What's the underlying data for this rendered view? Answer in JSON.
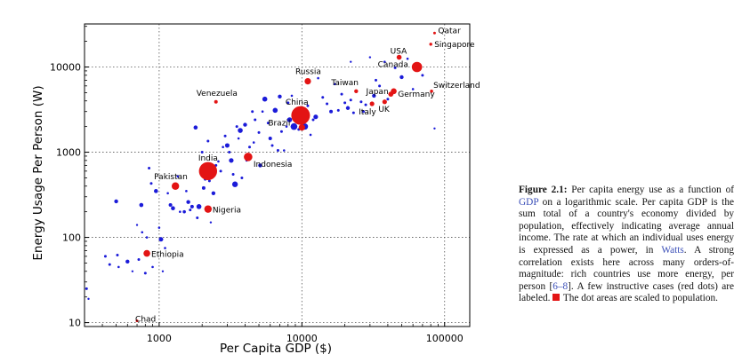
{
  "chart_data": {
    "type": "scatter",
    "xlabel": "Per Capita GDP ($)",
    "ylabel": "Energy Usage Per Person (W)",
    "x_scale": "log",
    "y_scale": "log",
    "xlim": [
      300,
      150000
    ],
    "ylim": [
      9,
      32000
    ],
    "x_ticks": [
      1000,
      10000,
      100000
    ],
    "x_tick_labels": [
      "1000",
      "10000",
      "100000"
    ],
    "y_ticks": [
      10,
      100,
      1000,
      10000
    ],
    "y_tick_labels": [
      "10",
      "100",
      "1000",
      "10000"
    ],
    "grid": "dotted",
    "series": [
      {
        "name": "Labeled countries",
        "color": "#e31414",
        "points": [
          {
            "label": "Qatar",
            "x": 85000,
            "y": 25000,
            "r": 1.5
          },
          {
            "label": "Singapore",
            "x": 80000,
            "y": 18500,
            "r": 1.7
          },
          {
            "label": "USA",
            "x": 48000,
            "y": 13000,
            "r": 2.8
          },
          {
            "label": "Canada",
            "x": 64000,
            "y": 10000,
            "r": 5.8
          },
          {
            "label": "Russia",
            "x": 11000,
            "y": 6800,
            "r": 3.6
          },
          {
            "label": "Switzerland",
            "x": 81000,
            "y": 5200,
            "r": 1.8
          },
          {
            "label": "Taiwan",
            "x": 24000,
            "y": 5200,
            "r": 2.2
          },
          {
            "label": "Japan",
            "x": 44000,
            "y": 5200,
            "r": 3.3
          },
          {
            "label": "Venezuela",
            "x": 2500,
            "y": 3900,
            "r": 2.0
          },
          {
            "label": "Germany",
            "x": 42000,
            "y": 4800,
            "r": 2.9
          },
          {
            "label": "UK",
            "x": 38000,
            "y": 3900,
            "r": 2.6
          },
          {
            "label": "Italy",
            "x": 31000,
            "y": 3700,
            "r": 2.6
          },
          {
            "label": "China",
            "x": 9800,
            "y": 2700,
            "r": 10.5
          },
          {
            "label": "Brazil",
            "x": 10000,
            "y": 1950,
            "r": 3.6
          },
          {
            "label": "Indonesia",
            "x": 4200,
            "y": 880,
            "r": 4.8
          },
          {
            "label": "India",
            "x": 2200,
            "y": 600,
            "r": 10.2
          },
          {
            "label": "Pakistan",
            "x": 1300,
            "y": 400,
            "r": 4.2
          },
          {
            "label": "Nigeria",
            "x": 2200,
            "y": 215,
            "r": 4.2
          },
          {
            "label": "Ethiopia",
            "x": 820,
            "y": 65,
            "r": 3.8
          },
          {
            "label": "Chad",
            "x": 700,
            "y": 10.5,
            "r": 1.5
          }
        ]
      },
      {
        "name": "Other countries",
        "color": "#1b1bd9",
        "points": [
          {
            "x": 310,
            "y": 25,
            "r": 1.5
          },
          {
            "x": 320,
            "y": 19,
            "r": 1.2
          },
          {
            "x": 420,
            "y": 60,
            "r": 1.5
          },
          {
            "x": 450,
            "y": 48,
            "r": 1.5
          },
          {
            "x": 500,
            "y": 265,
            "r": 2.2
          },
          {
            "x": 510,
            "y": 62,
            "r": 1.5
          },
          {
            "x": 520,
            "y": 45,
            "r": 1.3
          },
          {
            "x": 600,
            "y": 52,
            "r": 2.2
          },
          {
            "x": 650,
            "y": 40,
            "r": 1.2
          },
          {
            "x": 700,
            "y": 140,
            "r": 1.2
          },
          {
            "x": 720,
            "y": 55,
            "r": 1.5
          },
          {
            "x": 750,
            "y": 240,
            "r": 2.3
          },
          {
            "x": 760,
            "y": 115,
            "r": 1.3
          },
          {
            "x": 800,
            "y": 38,
            "r": 1.5
          },
          {
            "x": 820,
            "y": 100,
            "r": 1.3
          },
          {
            "x": 850,
            "y": 650,
            "r": 1.5
          },
          {
            "x": 880,
            "y": 430,
            "r": 1.5
          },
          {
            "x": 900,
            "y": 45,
            "r": 1.3
          },
          {
            "x": 950,
            "y": 350,
            "r": 2.3
          },
          {
            "x": 1000,
            "y": 130,
            "r": 1.3
          },
          {
            "x": 1030,
            "y": 95,
            "r": 2.5
          },
          {
            "x": 1060,
            "y": 40,
            "r": 1.2
          },
          {
            "x": 1100,
            "y": 75,
            "r": 1.3
          },
          {
            "x": 1150,
            "y": 330,
            "r": 1.3
          },
          {
            "x": 1200,
            "y": 240,
            "r": 2.0
          },
          {
            "x": 1250,
            "y": 220,
            "r": 2.3
          },
          {
            "x": 1350,
            "y": 520,
            "r": 1.3
          },
          {
            "x": 1400,
            "y": 200,
            "r": 1.3
          },
          {
            "x": 1500,
            "y": 200,
            "r": 1.8
          },
          {
            "x": 1550,
            "y": 350,
            "r": 1.3
          },
          {
            "x": 1600,
            "y": 260,
            "r": 2.2
          },
          {
            "x": 1650,
            "y": 210,
            "r": 1.5
          },
          {
            "x": 1700,
            "y": 230,
            "r": 2.0
          },
          {
            "x": 1800,
            "y": 1950,
            "r": 2.3
          },
          {
            "x": 1850,
            "y": 170,
            "r": 1.5
          },
          {
            "x": 1900,
            "y": 230,
            "r": 2.8
          },
          {
            "x": 2000,
            "y": 1000,
            "r": 1.5
          },
          {
            "x": 2050,
            "y": 380,
            "r": 2.0
          },
          {
            "x": 2100,
            "y": 480,
            "r": 1.5
          },
          {
            "x": 2200,
            "y": 1350,
            "r": 1.5
          },
          {
            "x": 2250,
            "y": 460,
            "r": 1.5
          },
          {
            "x": 2300,
            "y": 150,
            "r": 1.2
          },
          {
            "x": 2400,
            "y": 330,
            "r": 2.2
          },
          {
            "x": 2500,
            "y": 700,
            "r": 1.5
          },
          {
            "x": 2600,
            "y": 780,
            "r": 1.3
          },
          {
            "x": 2700,
            "y": 600,
            "r": 1.5
          },
          {
            "x": 2800,
            "y": 1150,
            "r": 1.3
          },
          {
            "x": 2900,
            "y": 1550,
            "r": 1.5
          },
          {
            "x": 3000,
            "y": 1200,
            "r": 2.5
          },
          {
            "x": 3100,
            "y": 1000,
            "r": 1.5
          },
          {
            "x": 3200,
            "y": 800,
            "r": 2.6
          },
          {
            "x": 3300,
            "y": 550,
            "r": 1.5
          },
          {
            "x": 3400,
            "y": 420,
            "r": 3.2
          },
          {
            "x": 3500,
            "y": 2000,
            "r": 1.5
          },
          {
            "x": 3600,
            "y": 1450,
            "r": 1.3
          },
          {
            "x": 3700,
            "y": 1800,
            "r": 2.8
          },
          {
            "x": 3800,
            "y": 500,
            "r": 1.5
          },
          {
            "x": 4000,
            "y": 2100,
            "r": 2.2
          },
          {
            "x": 4100,
            "y": 800,
            "r": 1.3
          },
          {
            "x": 4300,
            "y": 1150,
            "r": 1.5
          },
          {
            "x": 4500,
            "y": 3000,
            "r": 1.5
          },
          {
            "x": 4600,
            "y": 1300,
            "r": 1.3
          },
          {
            "x": 4700,
            "y": 2400,
            "r": 1.5
          },
          {
            "x": 5000,
            "y": 1700,
            "r": 1.5
          },
          {
            "x": 5100,
            "y": 700,
            "r": 2.2
          },
          {
            "x": 5300,
            "y": 3000,
            "r": 1.3
          },
          {
            "x": 5500,
            "y": 4200,
            "r": 2.8
          },
          {
            "x": 5800,
            "y": 2200,
            "r": 1.5
          },
          {
            "x": 6000,
            "y": 1450,
            "r": 2.0
          },
          {
            "x": 6200,
            "y": 1200,
            "r": 1.5
          },
          {
            "x": 6500,
            "y": 3100,
            "r": 2.8
          },
          {
            "x": 6800,
            "y": 1050,
            "r": 1.5
          },
          {
            "x": 7000,
            "y": 4500,
            "r": 2.2
          },
          {
            "x": 7200,
            "y": 1750,
            "r": 1.5
          },
          {
            "x": 7500,
            "y": 1050,
            "r": 1.3
          },
          {
            "x": 7800,
            "y": 2000,
            "r": 1.3
          },
          {
            "x": 8000,
            "y": 3800,
            "r": 1.5
          },
          {
            "x": 8200,
            "y": 2400,
            "r": 2.8
          },
          {
            "x": 8500,
            "y": 4600,
            "r": 1.3
          },
          {
            "x": 8800,
            "y": 2000,
            "r": 3.8
          },
          {
            "x": 9500,
            "y": 1850,
            "r": 1.5
          },
          {
            "x": 10500,
            "y": 2000,
            "r": 3.5
          },
          {
            "x": 11000,
            "y": 3500,
            "r": 1.5
          },
          {
            "x": 11500,
            "y": 1600,
            "r": 1.3
          },
          {
            "x": 12000,
            "y": 2400,
            "r": 1.5
          },
          {
            "x": 12500,
            "y": 2600,
            "r": 2.6
          },
          {
            "x": 13000,
            "y": 7400,
            "r": 1.3
          },
          {
            "x": 14000,
            "y": 4400,
            "r": 1.5
          },
          {
            "x": 15000,
            "y": 3700,
            "r": 1.5
          },
          {
            "x": 16000,
            "y": 3000,
            "r": 2.0
          },
          {
            "x": 17000,
            "y": 6300,
            "r": 1.3
          },
          {
            "x": 18000,
            "y": 3100,
            "r": 1.5
          },
          {
            "x": 19000,
            "y": 4800,
            "r": 1.5
          },
          {
            "x": 20000,
            "y": 3800,
            "r": 1.5
          },
          {
            "x": 21000,
            "y": 3300,
            "r": 2.2
          },
          {
            "x": 22000,
            "y": 4100,
            "r": 1.5
          },
          {
            "x": 23000,
            "y": 2900,
            "r": 1.5
          },
          {
            "x": 26000,
            "y": 3900,
            "r": 1.5
          },
          {
            "x": 27000,
            "y": 3000,
            "r": 1.5
          },
          {
            "x": 28000,
            "y": 3600,
            "r": 1.5
          },
          {
            "x": 32000,
            "y": 4600,
            "r": 2.2
          },
          {
            "x": 33000,
            "y": 7000,
            "r": 1.5
          },
          {
            "x": 35000,
            "y": 6000,
            "r": 1.5
          },
          {
            "x": 38000,
            "y": 11500,
            "r": 1.3
          },
          {
            "x": 40000,
            "y": 4200,
            "r": 1.5
          },
          {
            "x": 45000,
            "y": 9800,
            "r": 1.5
          },
          {
            "x": 50000,
            "y": 7600,
            "r": 2.2
          },
          {
            "x": 55000,
            "y": 12500,
            "r": 1.3
          },
          {
            "x": 60000,
            "y": 5500,
            "r": 1.3
          },
          {
            "x": 70000,
            "y": 8000,
            "r": 1.5
          },
          {
            "x": 30000,
            "y": 13000,
            "r": 1.2
          },
          {
            "x": 22000,
            "y": 11500,
            "r": 1.2
          },
          {
            "x": 85000,
            "y": 1900,
            "r": 1.2
          }
        ]
      }
    ]
  },
  "caption": {
    "label": "Figure 2.1:",
    "text_1": " Per capita energy use as a function of ",
    "link_1": "GDP",
    "text_2": " on a logarithmic scale. Per capita GDP is the sum total of a country's economy divided by population, effectively indicating average annual income. The rate at which an individual uses energy is expressed as a power, in ",
    "link_2": "Watts",
    "text_3": ". A strong correlation exists here across many orders-of-magnitude: rich countries use more energy, per person [",
    "link_3": "6–8",
    "text_4": "]. A few instructive cases (red dots) are labeled. ",
    "text_5": " The dot areas are scaled to population."
  }
}
